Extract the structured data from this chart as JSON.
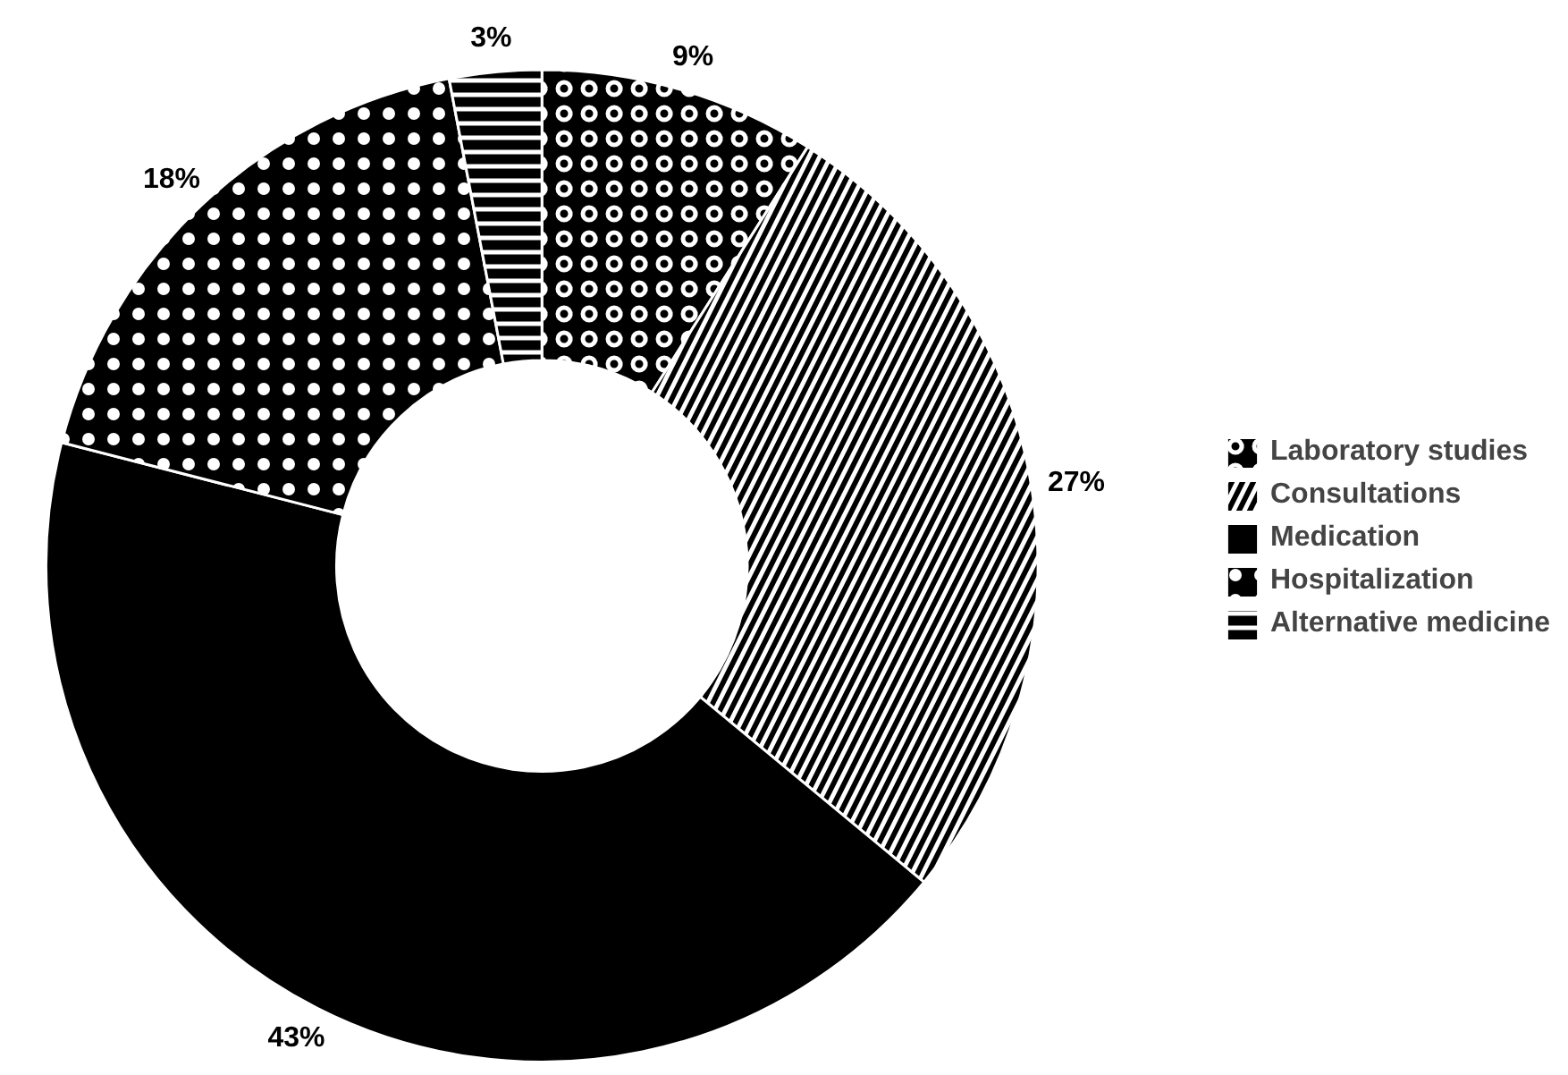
{
  "chart_data": {
    "type": "donut",
    "categories": [
      "Laboratory studies",
      "Consultations",
      "Medication",
      "Hospitalization",
      "Alternative medicine"
    ],
    "values": [
      9,
      27,
      43,
      18,
      3
    ],
    "colors": [
      "#000000",
      "#000000",
      "#000000",
      "#000000",
      "#000000"
    ],
    "value_labels": [
      "9%",
      "27%",
      "43%",
      "18%",
      "3%"
    ],
    "legend": "right"
  }
}
